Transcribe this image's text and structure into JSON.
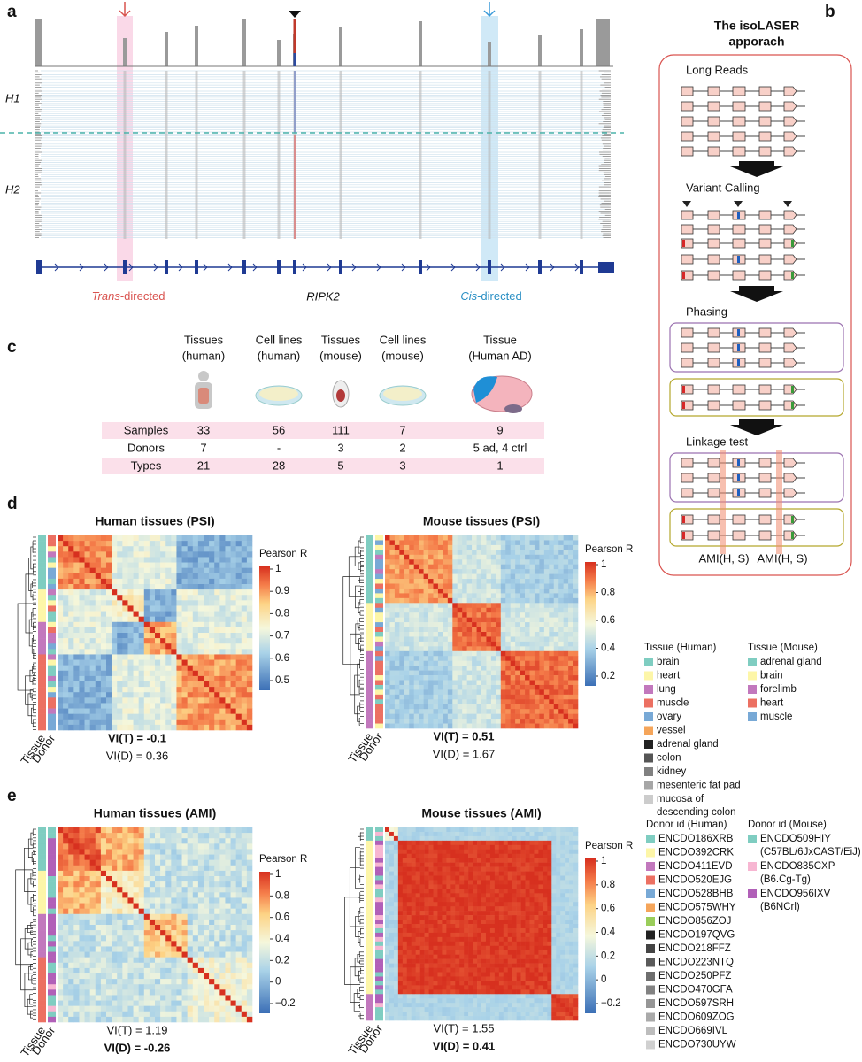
{
  "panel_a": {
    "label": "a",
    "h1": "H1",
    "h2": "H2",
    "trans": {
      "italic": "Trans",
      "rest": "-directed"
    },
    "gene": "RIPK2",
    "cis": {
      "italic": "Cis",
      "rest": "-directed"
    }
  },
  "panel_b": {
    "label": "b",
    "title": [
      "The isoLASER",
      "apporach"
    ],
    "steps": [
      "Long Reads",
      "Variant Calling",
      "Phasing",
      "Linkage test"
    ],
    "ami": [
      "AMI(H, S)",
      "AMI(H, S)"
    ]
  },
  "panel_c": {
    "label": "c",
    "columns": [
      [
        "Tissues",
        "(human)"
      ],
      [
        "Cell lines",
        "(human)"
      ],
      [
        "Tissues",
        "(mouse)"
      ],
      [
        "Cell lines",
        "(mouse)"
      ],
      [
        "Tissue",
        "(Human AD)"
      ]
    ],
    "rows": [
      [
        "Samples",
        "33",
        "56",
        "111",
        "7",
        "9"
      ],
      [
        "Donors",
        "7",
        "-",
        "3",
        "2",
        "5 ad, 4 ctrl"
      ],
      [
        "Types",
        "21",
        "28",
        "5",
        "3",
        "1"
      ]
    ]
  },
  "panel_d": {
    "label": "d",
    "axis_labels": [
      "Tissue",
      "Donor"
    ],
    "heatmaps": [
      {
        "title": "Human tissues (PSI)",
        "colorbar_title": "Pearson R",
        "colorbar_ticks": [
          "1",
          "0.9",
          "0.8",
          "0.7",
          "0.6",
          "0.5"
        ],
        "vi": [
          {
            "text": "VI(T) = -0.1",
            "bold": true
          },
          {
            "text": "VI(D) = 0.36",
            "bold": false
          }
        ]
      },
      {
        "title": "Mouse tissues (PSI)",
        "colorbar_title": "Pearson R",
        "colorbar_ticks": [
          "1",
          "0.8",
          "0.6",
          "0.4",
          "0.2"
        ],
        "vi": [
          {
            "text": "VI(T) = 0.51",
            "bold": true
          },
          {
            "text": "VI(D) = 1.67",
            "bold": false
          }
        ]
      }
    ],
    "legends": [
      {
        "title": "Tissue (Human)",
        "items": [
          {
            "lines": [
              "brain"
            ],
            "color": "#7fcdc1"
          },
          {
            "lines": [
              "heart"
            ],
            "color": "#fdf6a8"
          },
          {
            "lines": [
              "lung"
            ],
            "color": "#c278bd"
          },
          {
            "lines": [
              "muscle"
            ],
            "color": "#ec7062"
          },
          {
            "lines": [
              "ovary"
            ],
            "color": "#78a9d6"
          },
          {
            "lines": [
              "vessel"
            ],
            "color": "#f5a55a"
          },
          {
            "lines": [
              "adrenal gland"
            ],
            "color": "#222222"
          },
          {
            "lines": [
              "colon"
            ],
            "color": "#555555"
          },
          {
            "lines": [
              "kidney"
            ],
            "color": "#808080"
          },
          {
            "lines": [
              "mesenteric fat pad"
            ],
            "color": "#a6a6a6"
          },
          {
            "lines": [
              "mucosa of",
              "descending colon"
            ],
            "color": "#cccccc"
          }
        ]
      },
      {
        "title": "Tissue (Mouse)",
        "items": [
          {
            "lines": [
              "adrenal gland"
            ],
            "color": "#7fcdc1"
          },
          {
            "lines": [
              "brain"
            ],
            "color": "#fdf6a8"
          },
          {
            "lines": [
              "forelimb"
            ],
            "color": "#c278bd"
          },
          {
            "lines": [
              "heart"
            ],
            "color": "#ec7062"
          },
          {
            "lines": [
              "muscle"
            ],
            "color": "#78a9d6"
          }
        ]
      }
    ]
  },
  "panel_e": {
    "label": "e",
    "axis_labels": [
      "Tissue",
      "Donor"
    ],
    "heatmaps": [
      {
        "title": "Human tissues (AMI)",
        "colorbar_title": "Pearson R",
        "colorbar_ticks": [
          "1",
          "0.8",
          "0.6",
          "0.4",
          "0.2",
          "0",
          "−0.2"
        ],
        "vi": [
          {
            "text": "VI(T) = 1.19",
            "bold": false
          },
          {
            "text": "VI(D) = -0.26",
            "bold": true
          }
        ]
      },
      {
        "title": "Mouse tissues (AMI)",
        "colorbar_title": "Pearson R",
        "colorbar_ticks": [
          "1",
          "0.8",
          "0.6",
          "0.4",
          "0.2",
          "0",
          "−0.2"
        ],
        "vi": [
          {
            "text": "VI(T) = 1.55",
            "bold": false
          },
          {
            "text": "VI(D) = 0.41",
            "bold": true
          }
        ]
      }
    ],
    "legends": [
      {
        "title": "Donor id (Human)",
        "items": [
          {
            "lines": [
              "ENCDO186XRB"
            ],
            "color": "#7fcdc1"
          },
          {
            "lines": [
              "ENCDO392CRK"
            ],
            "color": "#fdf6a8"
          },
          {
            "lines": [
              "ENCDO411EVD"
            ],
            "color": "#c278bd"
          },
          {
            "lines": [
              "ENCDO520EJG"
            ],
            "color": "#ec7062"
          },
          {
            "lines": [
              "ENCDO528BHB"
            ],
            "color": "#78a9d6"
          },
          {
            "lines": [
              "ENCDO575WHY"
            ],
            "color": "#f5a55a"
          },
          {
            "lines": [
              "ENCDO856ZOJ"
            ],
            "color": "#9acd5a"
          },
          {
            "lines": [
              "ENCDO197QVG"
            ],
            "color": "#222222"
          },
          {
            "lines": [
              "ENCDO218FFZ"
            ],
            "color": "#444444"
          },
          {
            "lines": [
              "ENCDO223NTQ"
            ],
            "color": "#5a5a5a"
          },
          {
            "lines": [
              "ENCDO250PFZ"
            ],
            "color": "#6e6e6e"
          },
          {
            "lines": [
              "ENCDO470GFA"
            ],
            "color": "#828282"
          },
          {
            "lines": [
              "ENCDO597SRH"
            ],
            "color": "#969696"
          },
          {
            "lines": [
              "ENCDO609ZOG"
            ],
            "color": "#aaaaaa"
          },
          {
            "lines": [
              "ENCDO669IVL"
            ],
            "color": "#bdbdbd"
          },
          {
            "lines": [
              "ENCDO730UYW"
            ],
            "color": "#d0d0d0"
          }
        ]
      },
      {
        "title": "Donor id (Mouse)",
        "items": [
          {
            "lines": [
              "ENCDO509HIY",
              "(C57BL/6JxCAST/EiJ)"
            ],
            "color": "#7fcdc1"
          },
          {
            "lines": [
              "ENCDO835CXP",
              "(B6.Cg-Tg)"
            ],
            "color": "#f7b6d2"
          },
          {
            "lines": [
              "ENCDO956IXV",
              "(B6NCrl)"
            ],
            "color": "#b160b8"
          }
        ]
      }
    ]
  }
}
